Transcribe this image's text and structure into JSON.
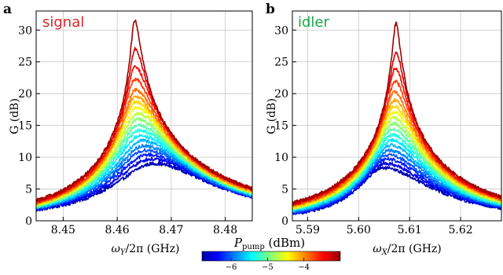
{
  "figure": {
    "colorbar": {
      "title": "P_pump (dBm)",
      "title_main": "P",
      "title_sub": "pump",
      "title_units": " (dBm)",
      "range": [
        -6.8,
        -3.0
      ],
      "ticks": [
        -6,
        -5,
        -4
      ],
      "tick_labels": [
        "−6",
        "−5",
        "−4"
      ],
      "colormap": "jet"
    }
  },
  "chart_data": [
    {
      "type": "line",
      "panel_letter": "a",
      "inset_label": "signal",
      "inset_color": "#d6262a",
      "ylabel": "G (dB)",
      "xlabel_main": "ω",
      "xlabel_sub": "Y",
      "xlabel_rest": "/2π (GHz)",
      "xlim": [
        8.445,
        8.485
      ],
      "ylim": [
        0,
        33
      ],
      "xticks": [
        8.45,
        8.46,
        8.47,
        8.48
      ],
      "xtick_labels": [
        "8.45",
        "8.46",
        "8.47",
        "8.48"
      ],
      "yticks": [
        0,
        5,
        10,
        15,
        20,
        25,
        30
      ],
      "ytick_labels": [
        "0",
        "5",
        "10",
        "15",
        "20",
        "25",
        "30"
      ],
      "grid": true,
      "series_peak_freq": [
        8.4668,
        8.4662,
        8.4657,
        8.4653,
        8.4649,
        8.4646,
        8.4643,
        8.4641,
        8.4639,
        8.4638,
        8.4637,
        8.4636,
        8.4635,
        8.4634,
        8.4634,
        8.4633,
        8.4633,
        8.4633,
        8.4632
      ],
      "series_peak_gain_db": [
        9.0,
        9.7,
        10.4,
        11.1,
        11.8,
        12.6,
        13.4,
        14.2,
        15.1,
        16.0,
        16.9,
        17.8,
        18.7,
        19.6,
        20.6,
        22.3,
        24.3,
        27.0,
        31.5
      ],
      "series_edge_gain_db": [
        [
          1.7,
          3.7
        ],
        [
          1.8,
          3.8
        ],
        [
          1.9,
          3.8
        ],
        [
          2.0,
          3.9
        ],
        [
          2.0,
          4.0
        ],
        [
          2.1,
          4.1
        ],
        [
          2.2,
          4.2
        ],
        [
          2.3,
          4.3
        ],
        [
          2.3,
          4.3
        ],
        [
          2.4,
          4.4
        ],
        [
          2.5,
          4.5
        ],
        [
          2.6,
          4.6
        ],
        [
          2.7,
          4.6
        ],
        [
          2.7,
          4.7
        ],
        [
          2.8,
          4.8
        ],
        [
          2.9,
          4.9
        ],
        [
          3.0,
          5.0
        ],
        [
          3.1,
          5.0
        ],
        [
          3.2,
          5.1
        ]
      ]
    },
    {
      "type": "line",
      "panel_letter": "b",
      "inset_label": "idler",
      "inset_color": "#1aa84a",
      "ylabel": "G (dB)",
      "xlabel_main": "ω",
      "xlabel_sub": "X",
      "xlabel_rest": "/2π (GHz)",
      "xlim": [
        5.587,
        5.628
      ],
      "ylim": [
        0,
        33
      ],
      "xticks": [
        5.59,
        5.6,
        5.61,
        5.62
      ],
      "xtick_labels": [
        "5.59",
        "5.60",
        "5.61",
        "5.62"
      ],
      "yticks": [
        0,
        5,
        10,
        15,
        20,
        25,
        30
      ],
      "ytick_labels": [
        "0",
        "5",
        "10",
        "15",
        "20",
        "25",
        "30"
      ],
      "grid": true,
      "series_peak_freq": [
        5.6048,
        5.6052,
        5.6055,
        5.6058,
        5.6061,
        5.6063,
        5.6065,
        5.6066,
        5.6067,
        5.6068,
        5.6069,
        5.607,
        5.607,
        5.6071,
        5.6071,
        5.6072,
        5.6072,
        5.6073,
        5.6073
      ],
      "series_peak_gain_db": [
        8.3,
        9.0,
        9.7,
        10.4,
        11.1,
        11.9,
        12.7,
        13.5,
        14.4,
        15.3,
        16.2,
        17.1,
        18.0,
        19.0,
        20.3,
        21.9,
        24.0,
        26.5,
        31.0
      ],
      "series_edge_gain_db": [
        [
          1.1,
          2.0
        ],
        [
          1.2,
          2.1
        ],
        [
          1.3,
          2.2
        ],
        [
          1.4,
          2.3
        ],
        [
          1.5,
          2.4
        ],
        [
          1.6,
          2.5
        ],
        [
          1.7,
          2.6
        ],
        [
          1.8,
          2.7
        ],
        [
          1.9,
          2.8
        ],
        [
          2.0,
          2.9
        ],
        [
          2.0,
          3.0
        ],
        [
          2.1,
          3.1
        ],
        [
          2.2,
          3.2
        ],
        [
          2.3,
          3.3
        ],
        [
          2.4,
          3.4
        ],
        [
          2.5,
          3.5
        ],
        [
          2.6,
          3.6
        ],
        [
          2.7,
          3.7
        ],
        [
          2.8,
          3.8
        ]
      ]
    }
  ]
}
